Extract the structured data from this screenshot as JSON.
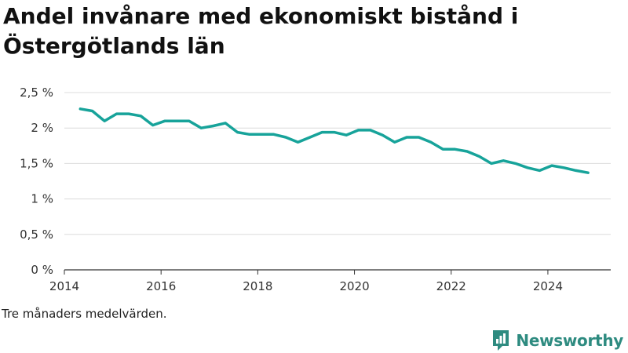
{
  "chart_data": {
    "type": "line",
    "title": "Andel invånare med ekonomiskt bistånd i Östergötlands län",
    "xlim": [
      2014,
      2025.3
    ],
    "ylim": [
      0,
      2.5
    ],
    "x_ticks": [
      2014,
      2016,
      2018,
      2020,
      2022,
      2024
    ],
    "x_tick_labels": [
      "2014",
      "2016",
      "2018",
      "2020",
      "2022",
      "2024"
    ],
    "y_ticks": [
      0,
      0.5,
      1,
      1.5,
      2,
      2.5
    ],
    "y_tick_labels": [
      "0 %",
      "0,5 %",
      "1 %",
      "1,5 %",
      "2 %",
      "2,5 %"
    ],
    "grid": "horizontal",
    "series": [
      {
        "color": "#17a39a",
        "x": [
          2014.33,
          2014.58,
          2014.83,
          2015.08,
          2015.33,
          2015.58,
          2015.83,
          2016.08,
          2016.33,
          2016.58,
          2016.83,
          2017.08,
          2017.33,
          2017.58,
          2017.83,
          2018.08,
          2018.33,
          2018.58,
          2018.83,
          2019.08,
          2019.33,
          2019.58,
          2019.83,
          2020.08,
          2020.33,
          2020.58,
          2020.83,
          2021.08,
          2021.33,
          2021.58,
          2021.83,
          2022.08,
          2022.33,
          2022.58,
          2022.83,
          2023.08,
          2023.33,
          2023.58,
          2023.83,
          2024.08,
          2024.33,
          2024.58,
          2024.83
        ],
        "values": [
          2.27,
          2.24,
          2.1,
          2.2,
          2.2,
          2.17,
          2.04,
          2.1,
          2.1,
          2.1,
          2.0,
          2.03,
          2.07,
          1.94,
          1.91,
          1.91,
          1.91,
          1.87,
          1.8,
          1.87,
          1.94,
          1.94,
          1.9,
          1.97,
          1.97,
          1.9,
          1.8,
          1.87,
          1.87,
          1.8,
          1.7,
          1.7,
          1.67,
          1.6,
          1.5,
          1.54,
          1.5,
          1.44,
          1.4,
          1.47,
          1.44,
          1.4,
          1.37
        ]
      }
    ]
  },
  "footer": {
    "note": "Tre månaders medelvärden.",
    "brand": "Newsworthy",
    "brand_color": "#2e8b80",
    "brand_icon": "newsworthy-logo-icon"
  }
}
